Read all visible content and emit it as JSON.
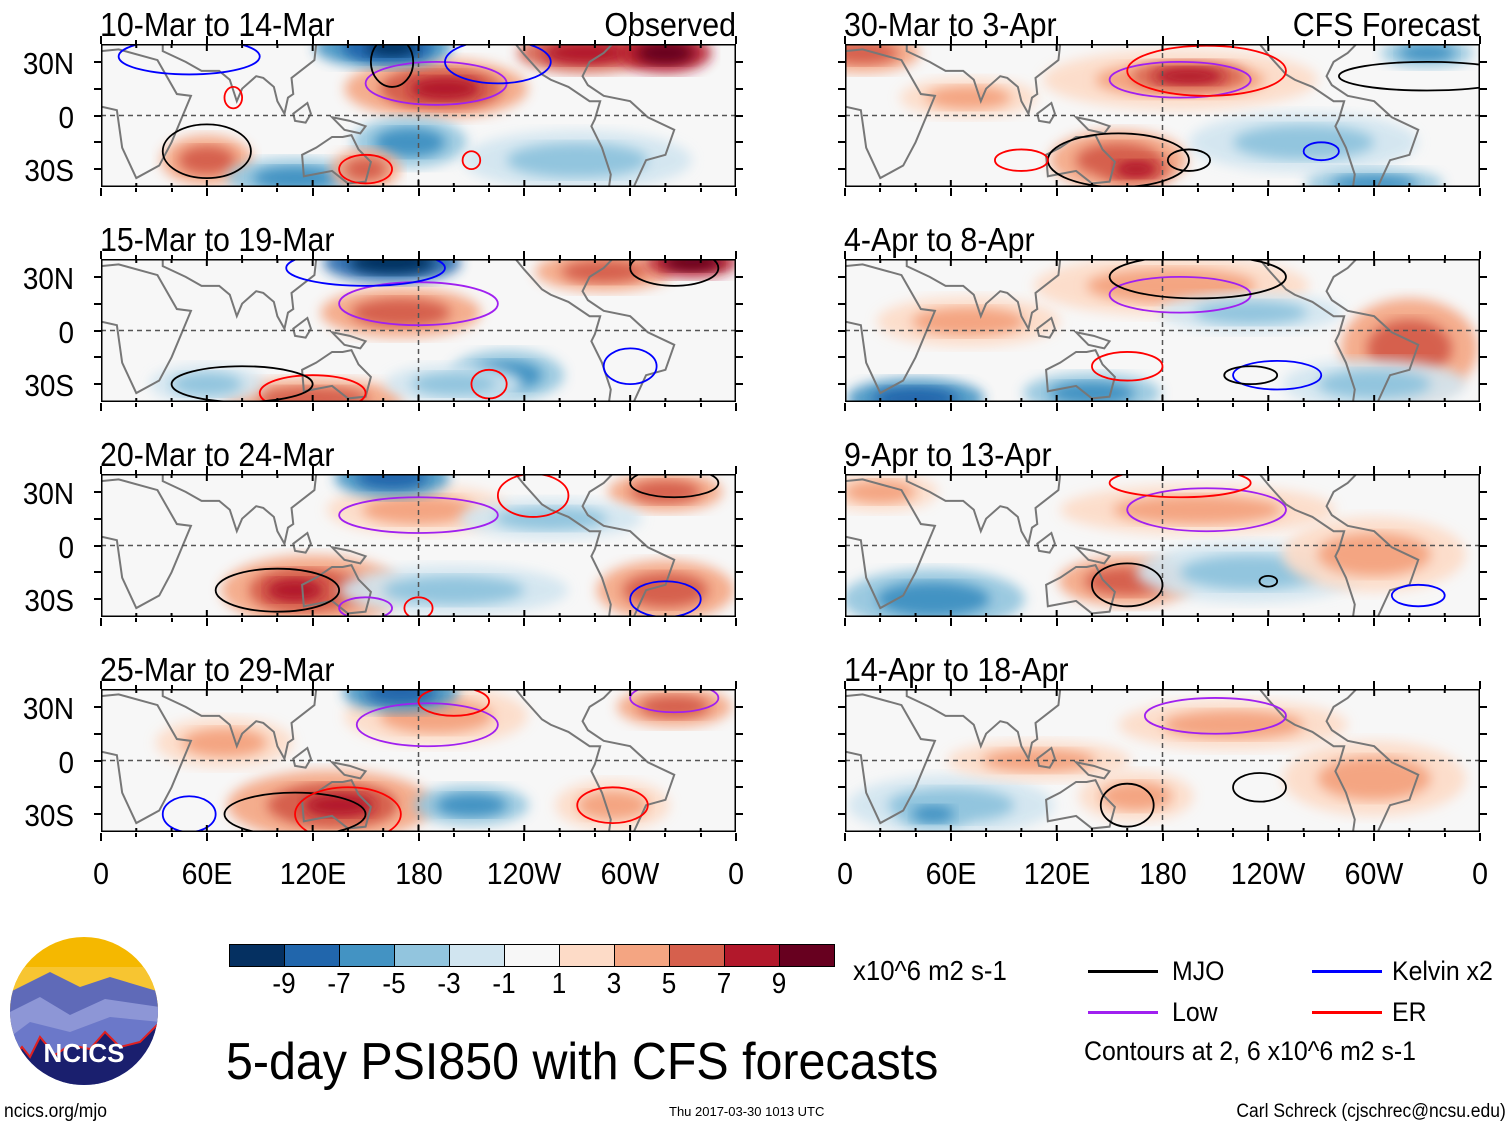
{
  "panels_left": [
    {
      "title": "10-Mar to 14-Mar",
      "tag": "Observed"
    },
    {
      "title": "15-Mar to 19-Mar",
      "tag": ""
    },
    {
      "title": "20-Mar to 24-Mar",
      "tag": ""
    },
    {
      "title": "25-Mar to 29-Mar",
      "tag": ""
    }
  ],
  "panels_right": [
    {
      "title": "30-Mar to 3-Apr",
      "tag": "CFS Forecast"
    },
    {
      "title": "4-Apr to 8-Apr",
      "tag": ""
    },
    {
      "title": "9-Apr to 13-Apr",
      "tag": ""
    },
    {
      "title": "14-Apr to 18-Apr",
      "tag": ""
    }
  ],
  "lat_labels": [
    "30N",
    "0",
    "30S"
  ],
  "lon_labels": [
    "0",
    "60E",
    "120E",
    "180",
    "120W",
    "60W",
    "0"
  ],
  "colorbar": {
    "colors": [
      "#053061",
      "#2166ac",
      "#4393c3",
      "#92c5de",
      "#d1e5f0",
      "#f7f7f7",
      "#fddbc7",
      "#f4a582",
      "#d6604d",
      "#b2182b",
      "#67001f"
    ],
    "labels": [
      "-9",
      "-7",
      "-5",
      "-3",
      "-1",
      "1",
      "3",
      "5",
      "7",
      "9"
    ],
    "units": "x10^6 m2 s-1"
  },
  "legend": {
    "items": [
      {
        "label": "MJO",
        "color": "#000000"
      },
      {
        "label": "Kelvin x2",
        "color": "#0000ff"
      },
      {
        "label": "Low",
        "color": "#a020f0"
      },
      {
        "label": "ER",
        "color": "#ff0000"
      }
    ],
    "note": "Contours at 2, 6 x10^6 m2 s-1"
  },
  "title": "5-day PSI850 with CFS forecasts",
  "logo_text": "NCICS",
  "footer": {
    "left": "ncics.org/mjo",
    "center": "Thu 2017-03-30 1013 UTC",
    "right": "Carl Schreck (cjschrec@ncsu.edu)"
  }
}
